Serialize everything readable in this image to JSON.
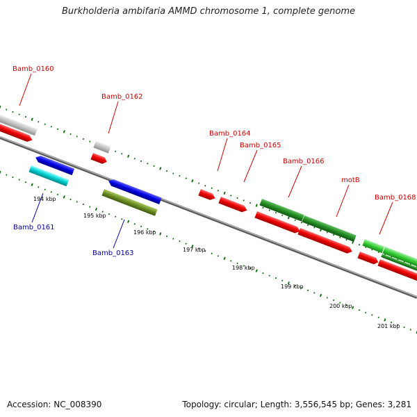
{
  "title": "Burkholderia ambifaria AMMD chromosome 1, complete genome",
  "footer": {
    "accession": "Accession: NC_008390",
    "summary": "Topology: circular; Length: 3,556,545 bp; Genes: 3,281"
  },
  "colors": {
    "forward_label": "#cc0000",
    "reverse_label": "#000099",
    "backbone": "#808080",
    "tick": "#006600",
    "cds_red": "#ee0000",
    "gene_gray": "#c0c0c0",
    "gene_blue": "#0000dd",
    "gene_cyan": "#00cccc",
    "gene_olive": "#6b8e23",
    "gene_darkgreen": "#228b22",
    "gene_lightgreen": "#33cc33"
  },
  "kbp_labels": [
    "194 kbp",
    "195 kbp",
    "196 kbp",
    "197 kbp",
    "198 kbp",
    "199 kbp",
    "200 kbp",
    "201 kbp"
  ],
  "genes": [
    {
      "name": "Bamb_0160",
      "strand": "forward"
    },
    {
      "name": "Bamb_0161",
      "strand": "reverse"
    },
    {
      "name": "Bamb_0162",
      "strand": "forward"
    },
    {
      "name": "Bamb_0163",
      "strand": "reverse"
    },
    {
      "name": "Bamb_0164",
      "strand": "forward"
    },
    {
      "name": "Bamb_0165",
      "strand": "forward"
    },
    {
      "name": "Bamb_0166",
      "strand": "forward"
    },
    {
      "name": "motB",
      "strand": "forward"
    },
    {
      "name": "Bamb_0168",
      "strand": "forward"
    }
  ]
}
